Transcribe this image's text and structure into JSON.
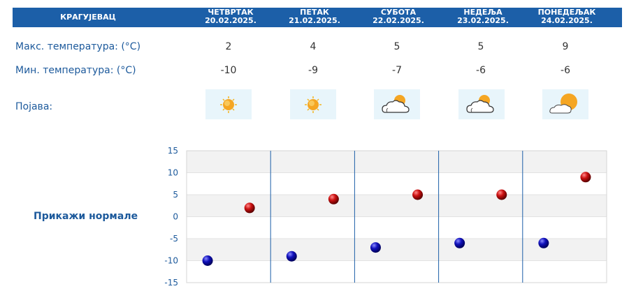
{
  "header": {
    "city": "КРАГУЈЕВАЦ",
    "days": [
      {
        "name": "ЧЕТВРТАК",
        "date": "20.02.2025."
      },
      {
        "name": "ПЕТАК",
        "date": "21.02.2025."
      },
      {
        "name": "СУБОТА",
        "date": "22.02.2025."
      },
      {
        "name": "НЕДЕЉА",
        "date": "23.02.2025."
      },
      {
        "name": "ПОНЕДЕЉАК",
        "date": "24.02.2025."
      }
    ]
  },
  "rows": {
    "max_label": "Макс. температура: (°C)",
    "min_label": "Мин. температура: (°C)",
    "phenomenon_label": "Појава:"
  },
  "weather_icons": [
    "sun-icon",
    "sun-icon",
    "sun-cloud-icon",
    "sun-cloud-icon",
    "sun-cloud-icon"
  ],
  "show_normals": "Прикажи нормале",
  "colors": {
    "header_bg": "#1c5fa8",
    "label": "#1d5a9c",
    "max_marker": "#cc1111",
    "min_marker": "#1111bb",
    "icon_bg": "#e8f5fb",
    "grid_band": "#f2f2f2"
  },
  "chart_data": {
    "type": "scatter",
    "categories": [
      "20.02.2025.",
      "21.02.2025.",
      "22.02.2025.",
      "23.02.2025.",
      "24.02.2025."
    ],
    "series": [
      {
        "name": "",
        "role": "max",
        "values": [
          2,
          4,
          5,
          5,
          9
        ]
      },
      {
        "name": "",
        "role": "min",
        "values": [
          -10,
          -9,
          -7,
          -6,
          -6
        ]
      }
    ],
    "ylim": [
      -15,
      15
    ],
    "yticks": [
      15,
      10,
      5,
      0,
      -5,
      -10,
      -15
    ],
    "grid": true,
    "xlabel": "",
    "ylabel": ""
  }
}
